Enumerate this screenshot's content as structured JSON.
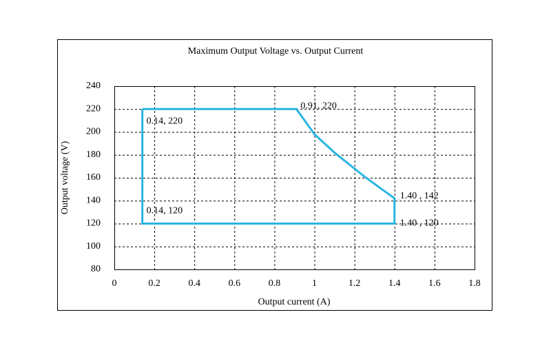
{
  "chart_data": {
    "type": "line",
    "title": "Maximum Output Voltage vs. Output Current",
    "x_label": "Output current (A)",
    "y_label": "Output voltage (V)",
    "x": [
      0.14,
      0.91,
      1.0,
      1.1,
      1.25,
      1.4,
      1.4,
      0.14,
      0.14
    ],
    "series": [
      {
        "color": "#29b5e2",
        "values": [
          220,
          220,
          198,
          182,
          161,
          142,
          120,
          120,
          220
        ]
      }
    ],
    "annotations": [
      "0.91,  220",
      "0.14,  220",
      "0.14,  120",
      "1.40 , 142",
      "1.40 , 120"
    ],
    "xlim": [
      0,
      1.8
    ],
    "xticks": [
      0,
      0.2,
      0.4,
      0.6,
      0.8,
      1,
      1.2,
      1.4,
      1.6,
      1.8
    ],
    "ylim": [
      80,
      240
    ],
    "yticks": [
      80,
      100,
      120,
      140,
      160,
      180,
      200,
      220,
      240
    ],
    "grid": true
  }
}
